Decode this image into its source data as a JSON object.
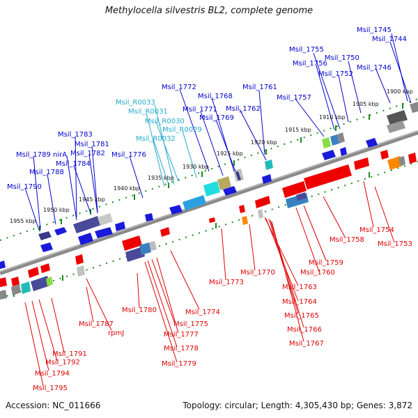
{
  "title": "Methylocella silvestris BL2, complete genome",
  "footer": {
    "accession": "Accession: NC_011666",
    "summary": "Topology: circular; Length: 4,305,430 bp; Genes: 3,872"
  },
  "colors": {
    "backbone": "#777777",
    "tick": "#1a8a1a",
    "forward_label": "#0000cc",
    "reverse_label": "#dd0000",
    "rna_label": "#22aacc"
  },
  "scale_labels": [
    "1955 kbp",
    "1950 kbp",
    "1945 kbp",
    "1940 kbp",
    "1935 kbp",
    "1930 kbp",
    "1925 kbp",
    "1920 kbp",
    "1915 kbp",
    "1910 kbp",
    "1905 kbp",
    "1900 kbp"
  ],
  "forward_labels": [
    "Msil_1745",
    "Msil_1744",
    "Msil_1755",
    "Msil_1750",
    "Msil_1756",
    "Msil_1752",
    "Msil_1746",
    "Msil_1772",
    "Msil_1761",
    "Msil_1768",
    "Msil_1757",
    "Msil_1771",
    "Msil_1762",
    "Msil_1769",
    "Msil_1783",
    "Msil_1781",
    "Msil_1789",
    "nirA",
    "Msil_1782",
    "Msil_1776",
    "Msil_1788",
    "Msil_1784",
    "Msil_1790"
  ],
  "rna_labels": [
    "Msil_R0033",
    "Msil_R0031",
    "Msil_R0030",
    "Msil_R0029",
    "Msil_R0032"
  ],
  "reverse_labels": [
    "Msil_1754",
    "Msil_1758",
    "Msil_1753",
    "Msil_1759",
    "Msil_1760",
    "Msil_1770",
    "Msil_1773",
    "Msil_1763",
    "Msil_1764",
    "Msil_1765",
    "Msil_1766",
    "Msil_1767",
    "Msil_1774",
    "Msil_1780",
    "Msil_1775",
    "Msil_1777",
    "Msil_1778",
    "Msil_1779",
    "Msil_1787",
    "rpmJ",
    "Msil_1791",
    "Msil_1792",
    "Msil_1794",
    "Msil_1795"
  ]
}
